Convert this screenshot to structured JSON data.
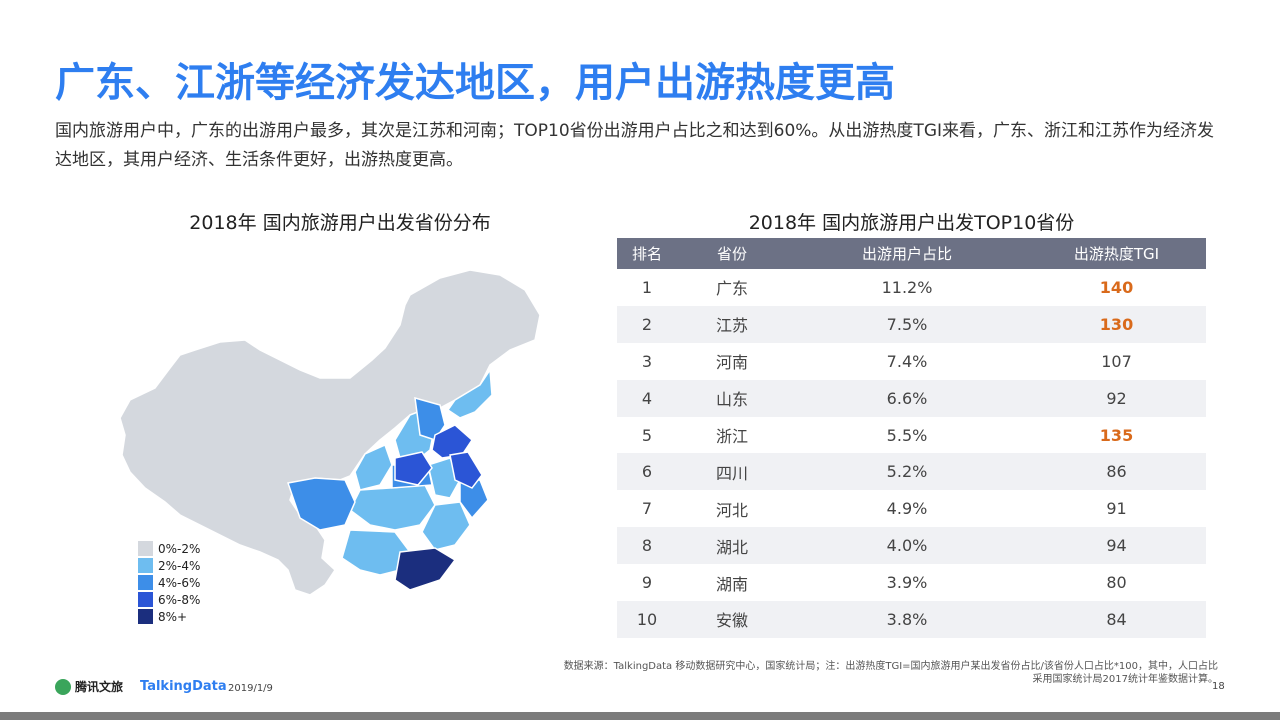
{
  "title": "广东、江浙等经济发达地区，用户出游热度更高",
  "intro": "国内旅游用户中，广东的出游用户最多，其次是江苏和河南；TOP10省份出游用户占比之和达到60%。从出游热度TGI来看，广东、浙江和江苏作为经济发达地区，其用户经济、生活条件更好，出游热度更高。",
  "map": {
    "title": "2018年 国内旅游用户出发省份分布",
    "legend": [
      {
        "label": "0%-2%",
        "color": "#d4d8de"
      },
      {
        "label": "2%-4%",
        "color": "#6ebdf0"
      },
      {
        "label": "4%-6%",
        "color": "#3d8ee8"
      },
      {
        "label": "6%-8%",
        "color": "#2b55d6"
      },
      {
        "label": "8%+",
        "color": "#1b2e7e"
      }
    ]
  },
  "table": {
    "title": "2018年 国内旅游用户出发TOP10省份",
    "headers": [
      "排名",
      "省份",
      "出游用户占比",
      "出游热度TGI"
    ],
    "rows": [
      {
        "rank": "1",
        "province": "广东",
        "share": "11.2%",
        "tgi": "140",
        "highlight": true
      },
      {
        "rank": "2",
        "province": "江苏",
        "share": "7.5%",
        "tgi": "130",
        "highlight": true
      },
      {
        "rank": "3",
        "province": "河南",
        "share": "7.4%",
        "tgi": "107",
        "highlight": false
      },
      {
        "rank": "4",
        "province": "山东",
        "share": "6.6%",
        "tgi": "92",
        "highlight": false
      },
      {
        "rank": "5",
        "province": "浙江",
        "share": "5.5%",
        "tgi": "135",
        "highlight": true
      },
      {
        "rank": "6",
        "province": "四川",
        "share": "5.2%",
        "tgi": "86",
        "highlight": false
      },
      {
        "rank": "7",
        "province": "河北",
        "share": "4.9%",
        "tgi": "91",
        "highlight": false
      },
      {
        "rank": "8",
        "province": "湖北",
        "share": "4.0%",
        "tgi": "94",
        "highlight": false
      },
      {
        "rank": "9",
        "province": "湖南",
        "share": "3.9%",
        "tgi": "80",
        "highlight": false
      },
      {
        "rank": "10",
        "province": "安徽",
        "share": "3.8%",
        "tgi": "84",
        "highlight": false
      }
    ]
  },
  "chart_data": {
    "type": "table",
    "title": "2018年 国内旅游用户出发TOP10省份",
    "columns": [
      "排名",
      "省份",
      "出游用户占比",
      "出游热度TGI"
    ],
    "categories": [
      "广东",
      "江苏",
      "河南",
      "山东",
      "浙江",
      "四川",
      "河北",
      "湖北",
      "湖南",
      "安徽"
    ],
    "series": [
      {
        "name": "出游用户占比",
        "values": [
          11.2,
          7.5,
          7.4,
          6.6,
          5.5,
          5.2,
          4.9,
          4.0,
          3.9,
          3.8
        ]
      },
      {
        "name": "出游热度TGI",
        "values": [
          140,
          130,
          107,
          92,
          135,
          86,
          91,
          94,
          80,
          84
        ]
      }
    ]
  },
  "footer": {
    "source_line1": "数据来源：TalkingData  移动数据研究中心，国家统计局；注：出游热度TGI=国内旅游用户某出发省份占比/该省份人口占比*100，其中，人口占比",
    "source_line2": "采用国家统计局2017统计年鉴数据计算。",
    "logo1": "腾讯文旅",
    "logo2": "TalkingData",
    "date": "2019/1/9",
    "page": "18"
  }
}
